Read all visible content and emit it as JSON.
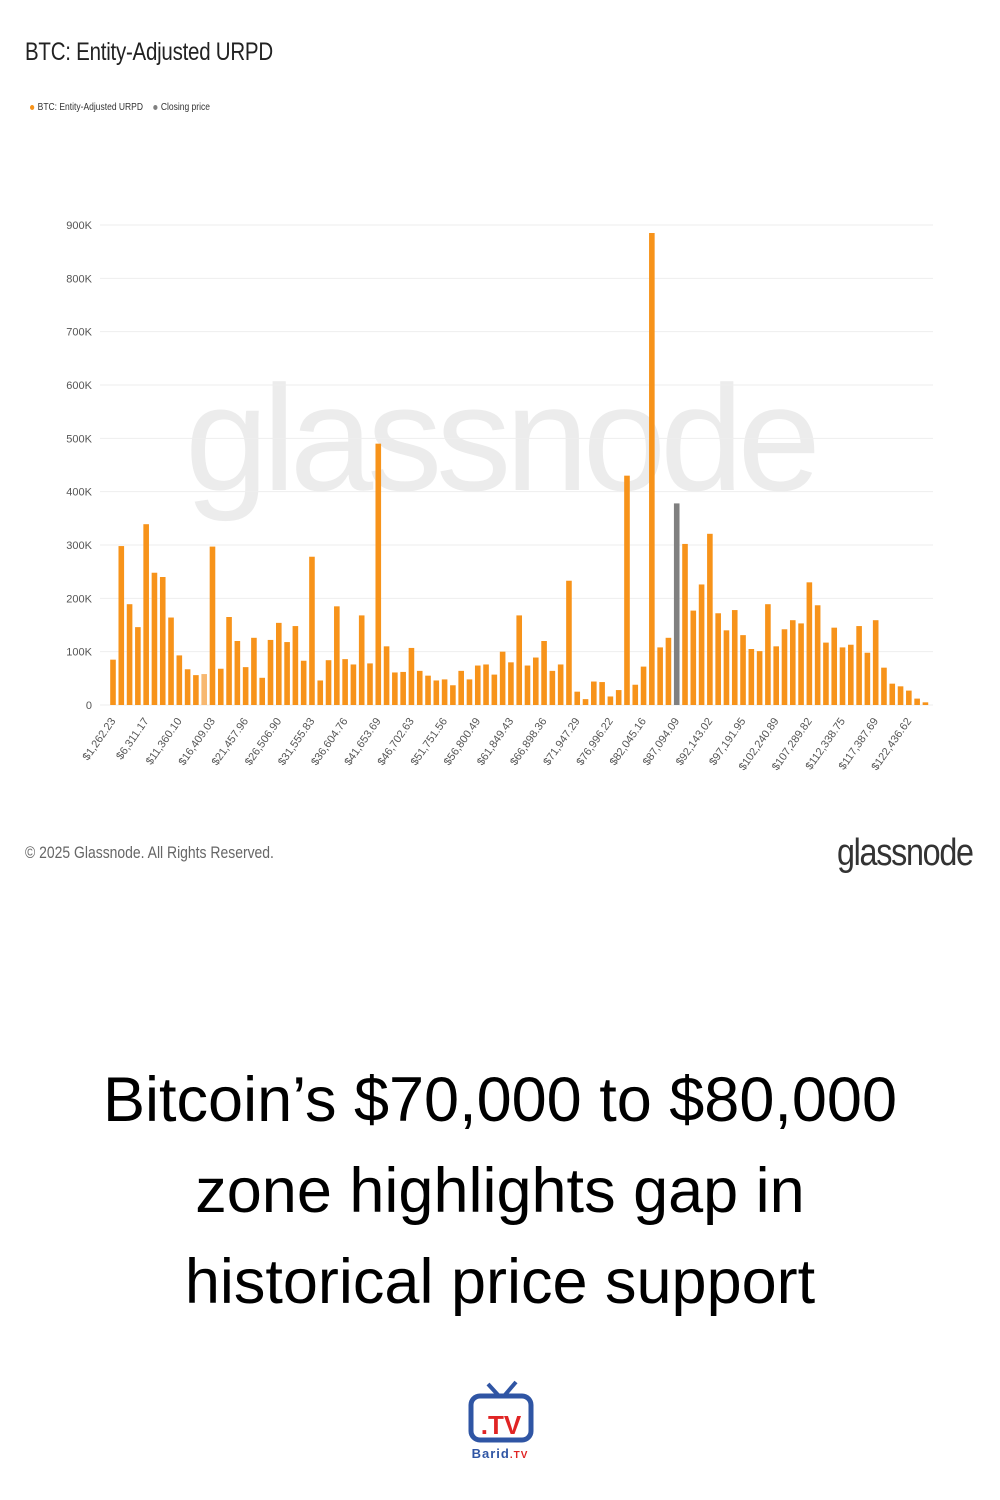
{
  "chart_data": {
    "type": "bar",
    "title": "BTC: Entity-Adjusted URPD",
    "legend": [
      {
        "label": "BTC: Entity-Adjusted URPD",
        "color": "#f7931a"
      },
      {
        "label": "Closing price",
        "color": "#808080"
      }
    ],
    "legend_placement": "top-left",
    "xlabel": "",
    "ylabel": "",
    "ylim": [
      0,
      900000
    ],
    "yticks": [
      0,
      100000,
      200000,
      300000,
      400000,
      500000,
      600000,
      700000,
      800000,
      900000
    ],
    "ytick_labels": [
      "0",
      "100K",
      "200K",
      "300K",
      "400K",
      "500K",
      "600K",
      "700K",
      "800K",
      "900K"
    ],
    "grid": true,
    "bin_width_usd": 1262.23,
    "xtick_every_n_bars": 4,
    "xtick_labels": [
      "$1,262.23",
      "$6,311.17",
      "$11,360.10",
      "$16,409.03",
      "$21,457.96",
      "$26,506.90",
      "$31,555.83",
      "$36,604.76",
      "$41,653.69",
      "$46,702.63",
      "$51,751.56",
      "$56,800.49",
      "$61,849.43",
      "$66,898.36",
      "$71,947.29",
      "$76,996.22",
      "$82,045.16",
      "$87,094.09",
      "$92,143.02",
      "$97,191.95",
      "$102,240.89",
      "$107,289.82",
      "$112,338.75",
      "$117,387.69",
      "$122,436.62"
    ],
    "closing_price_bar_index": 68,
    "values_thousands": [
      85,
      298,
      189,
      146,
      339,
      248,
      240,
      164,
      93,
      67,
      56,
      58,
      297,
      68,
      165,
      120,
      71,
      126,
      51,
      122,
      154,
      118,
      148,
      83,
      278,
      46,
      84,
      185,
      86,
      76,
      168,
      78,
      490,
      110,
      61,
      62,
      107,
      64,
      55,
      46,
      48,
      37,
      64,
      48,
      74,
      76,
      57,
      100,
      80,
      168,
      74,
      89,
      120,
      64,
      76,
      233,
      25,
      11,
      44,
      43,
      16,
      28,
      430,
      38,
      72,
      885,
      108,
      126,
      378,
      302,
      177,
      226,
      321,
      172,
      140,
      178,
      131,
      105,
      101,
      189,
      110,
      142,
      159,
      153,
      230,
      187,
      117,
      145,
      108,
      113,
      148,
      98,
      159,
      70,
      40,
      35,
      27,
      12,
      5
    ],
    "watermark": "glassnode"
  },
  "footer": {
    "copyright": "© 2025 Glassnode. All Rights Reserved.",
    "brand": "glassnode"
  },
  "headline": {
    "line1": "Bitcoin’s $70,000 to $80,000",
    "line2": "zone highlights gap in",
    "line3": "historical price support"
  },
  "logo": {
    "tv": ".TV",
    "name": "Barid",
    "suffix": ".TV"
  }
}
